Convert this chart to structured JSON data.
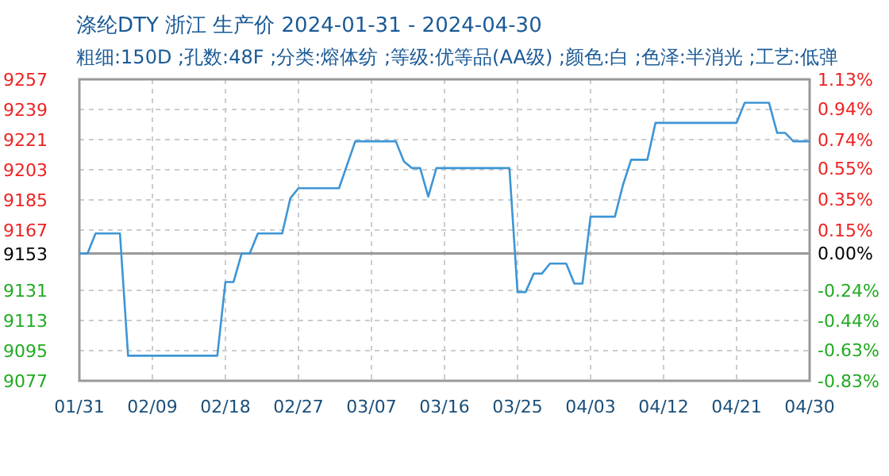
{
  "chart_data": {
    "type": "line",
    "title": "涤纶DTY 浙江 生产价 2024-01-31 - 2024-04-30",
    "subtitle": "粗细:150D ;孔数:48F ;分类:熔体纺 ;等级:优等品(AA级) ;颜色:白 ;色泽:半消光 ;工艺:低弹",
    "series": [
      {
        "color": "#3d95d5",
        "x": [
          "2024-01-31",
          "2024-02-01",
          "2024-02-02",
          "2024-02-05",
          "2024-02-06",
          "2024-02-17",
          "2024-02-18",
          "2024-02-19",
          "2024-02-20",
          "2024-02-21",
          "2024-02-22",
          "2024-02-25",
          "2024-02-26",
          "2024-02-27",
          "2024-03-03",
          "2024-03-05",
          "2024-03-10",
          "2024-03-11",
          "2024-03-12",
          "2024-03-13",
          "2024-03-14",
          "2024-03-15",
          "2024-03-24",
          "2024-03-25",
          "2024-03-26",
          "2024-03-27",
          "2024-03-28",
          "2024-03-29",
          "2024-03-31",
          "2024-04-01",
          "2024-04-02",
          "2024-04-03",
          "2024-04-06",
          "2024-04-07",
          "2024-04-08",
          "2024-04-10",
          "2024-04-11",
          "2024-04-21",
          "2024-04-22",
          "2024-04-25",
          "2024-04-26",
          "2024-04-27",
          "2024-04-28",
          "2024-04-30"
        ],
        "values": [
          9153,
          9153,
          9165,
          9165,
          9092,
          9092,
          9136,
          9136,
          9153,
          9153,
          9165,
          9165,
          9186,
          9192,
          9192,
          9220,
          9220,
          9208,
          9204,
          9204,
          9187,
          9204,
          9204,
          9130,
          9130,
          9141,
          9141,
          9147,
          9147,
          9135,
          9135,
          9175,
          9175,
          9194,
          9209,
          9209,
          9231,
          9231,
          9243,
          9243,
          9225,
          9225,
          9220,
          9220
        ]
      }
    ],
    "xlim": [
      "2024-01-31",
      "2024-04-30"
    ],
    "xticks": [
      {
        "value": "2024-01-31",
        "label": "01/31"
      },
      {
        "value": "2024-02-09",
        "label": "02/09"
      },
      {
        "value": "2024-02-18",
        "label": "02/18"
      },
      {
        "value": "2024-02-27",
        "label": "02/27"
      },
      {
        "value": "2024-03-07",
        "label": "03/07"
      },
      {
        "value": "2024-03-16",
        "label": "03/16"
      },
      {
        "value": "2024-03-25",
        "label": "03/25"
      },
      {
        "value": "2024-04-03",
        "label": "04/03"
      },
      {
        "value": "2024-04-12",
        "label": "04/12"
      },
      {
        "value": "2024-04-21",
        "label": "04/21"
      },
      {
        "value": "2024-04-30",
        "label": "04/30"
      }
    ],
    "ylim": [
      9077,
      9257
    ],
    "yticks": [
      9077,
      9095,
      9113,
      9131,
      9153,
      9167,
      9185,
      9203,
      9221,
      9239,
      9257
    ],
    "y2lim": [
      -0.83,
      1.13
    ],
    "y2ticks": [
      {
        "value": -0.83,
        "label": "-0.83%"
      },
      {
        "value": -0.63,
        "label": "-0.63%"
      },
      {
        "value": -0.44,
        "label": "-0.44%"
      },
      {
        "value": -0.24,
        "label": "-0.24%"
      },
      {
        "value": 0,
        "label": "0.00%"
      },
      {
        "value": 0.15,
        "label": "0.15%"
      },
      {
        "value": 0.35,
        "label": "0.35%"
      },
      {
        "value": 0.55,
        "label": "0.55%"
      },
      {
        "value": 0.74,
        "label": "0.74%"
      },
      {
        "value": 0.94,
        "label": "0.94%"
      },
      {
        "value": 1.13,
        "label": "1.13%"
      }
    ],
    "ref_lines": [
      {
        "axis": "y",
        "value": 9153,
        "color": "#999999"
      }
    ],
    "grid": true,
    "marker": "none",
    "line_style": "solid"
  }
}
